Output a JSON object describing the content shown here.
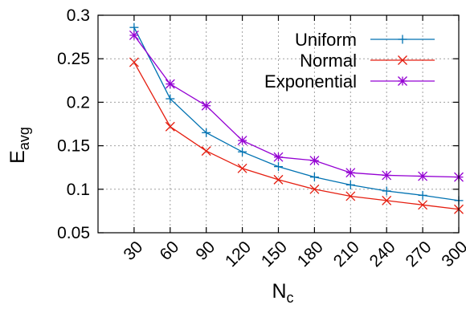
{
  "chart_data": {
    "type": "line",
    "title": "",
    "xlabel": "N",
    "xlabel_sub": "c",
    "ylabel": "E",
    "ylabel_sub": "avg",
    "x": [
      30,
      60,
      90,
      120,
      150,
      180,
      210,
      240,
      270,
      300
    ],
    "x_tick_labels": [
      "30",
      "60",
      "90",
      "120",
      "150",
      "180",
      "210",
      "240",
      "270",
      "300"
    ],
    "xlim": [
      0,
      300
    ],
    "ylim": [
      0.05,
      0.3
    ],
    "y_ticks": [
      0.05,
      0.1,
      0.15,
      0.2,
      0.25,
      0.3
    ],
    "y_tick_labels": [
      "0.05",
      "0.1",
      "0.15",
      "0.2",
      "0.25",
      "0.3"
    ],
    "grid": true,
    "legend_position": "top-right",
    "series": [
      {
        "name": "Uniform",
        "color": "#0072b2",
        "marker": "plus",
        "values": [
          0.286,
          0.204,
          0.165,
          0.143,
          0.126,
          0.114,
          0.105,
          0.098,
          0.093,
          0.087
        ]
      },
      {
        "name": "Normal",
        "color": "#e51e10",
        "marker": "cross",
        "values": [
          0.246,
          0.172,
          0.144,
          0.124,
          0.111,
          0.1,
          0.092,
          0.087,
          0.082,
          0.077
        ]
      },
      {
        "name": "Exponential",
        "color": "#9400d3",
        "marker": "star",
        "values": [
          0.277,
          0.221,
          0.196,
          0.156,
          0.137,
          0.133,
          0.119,
          0.116,
          0.115,
          0.114
        ]
      }
    ]
  }
}
